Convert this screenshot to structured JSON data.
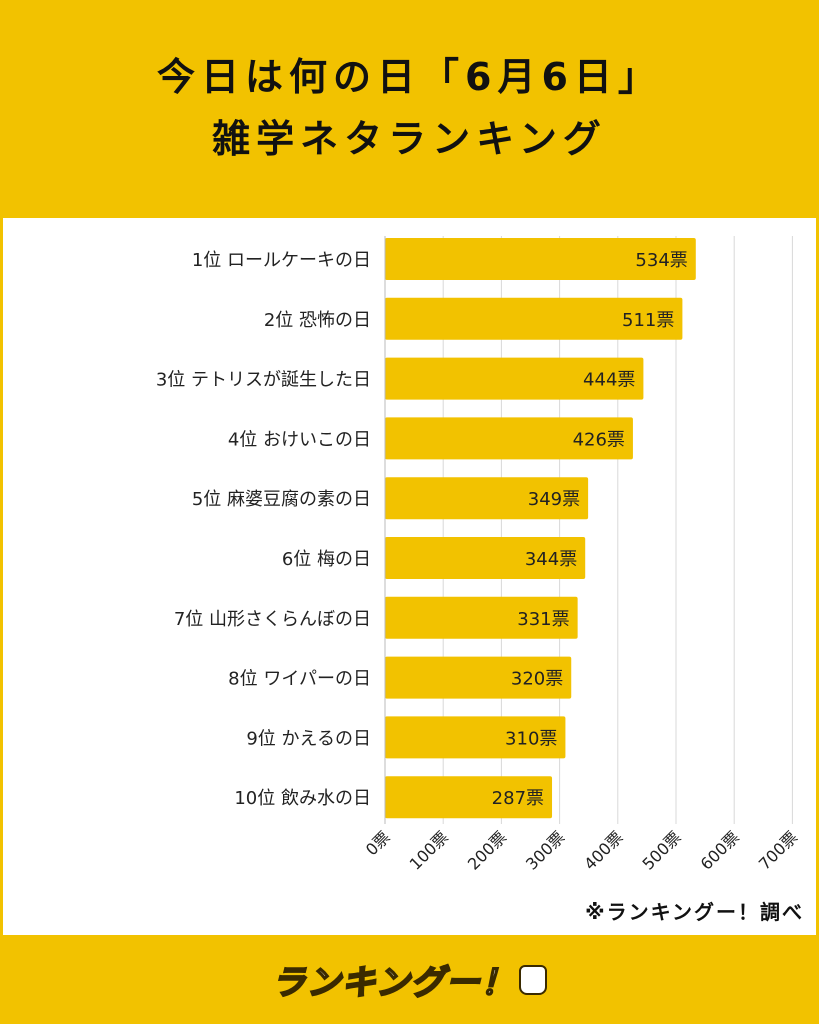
{
  "header": {
    "title_line1": "今日は何の日「6月6日」",
    "title_line2": "雑学ネタランキング"
  },
  "credit": "※ランキングー！調べ",
  "footer": {
    "logo": "ランキングー！"
  },
  "colors": {
    "background": "#F2C200",
    "bar": "#F2C200",
    "grid": "#d8d8d8",
    "panel": "#ffffff"
  },
  "chart_data": {
    "type": "bar",
    "orientation": "horizontal",
    "categories": [
      "1位 ロールケーキの日",
      "2位 恐怖の日",
      "3位 テトリスが誕生した日",
      "4位 おけいこの日",
      "5位 麻婆豆腐の素の日",
      "6位 梅の日",
      "7位 山形さくらんぼの日",
      "8位 ワイパーの日",
      "9位 かえるの日",
      "10位 飲み水の日"
    ],
    "values": [
      534,
      511,
      444,
      426,
      349,
      344,
      331,
      320,
      310,
      287
    ],
    "value_labels": [
      "534票",
      "511票",
      "444票",
      "426票",
      "349票",
      "344票",
      "331票",
      "320票",
      "310票",
      "287票"
    ],
    "x_ticks": [
      0,
      100,
      200,
      300,
      400,
      500,
      600,
      700
    ],
    "x_tick_labels": [
      "0票",
      "100票",
      "200票",
      "300票",
      "400票",
      "500票",
      "600票",
      "700票"
    ],
    "xlim": [
      0,
      700
    ],
    "grid": true,
    "legend": "none"
  }
}
